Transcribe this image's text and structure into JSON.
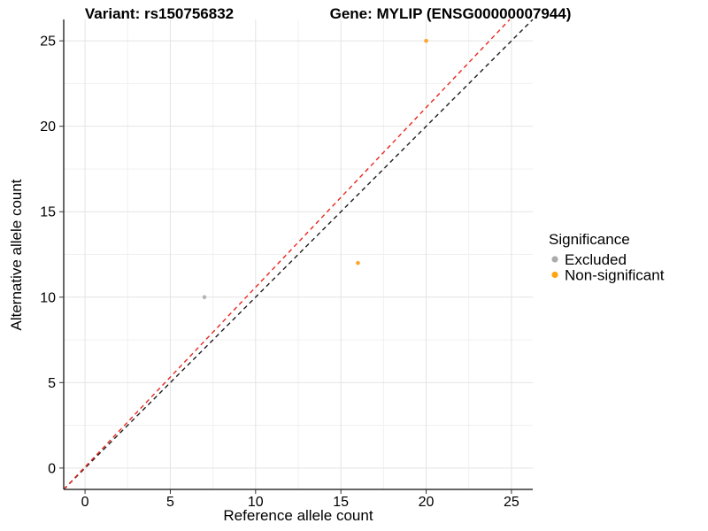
{
  "figure": {
    "title_left": "Variant: rs150756832",
    "title_right": "Gene: MYLIP (ENSG00000007944)"
  },
  "chart_data": {
    "type": "scatter",
    "title_left": "Variant: rs150756832",
    "title_right": "Gene: MYLIP (ENSG00000007944)",
    "xlabel": "Reference allele count",
    "ylabel": "Alternative allele count",
    "xlim": [
      -1.25,
      26.25
    ],
    "ylim": [
      -1.25,
      26.25
    ],
    "x_ticks": [
      0,
      5,
      10,
      15,
      20,
      25
    ],
    "y_ticks": [
      0,
      5,
      10,
      15,
      20,
      25
    ],
    "minor_grid_step": 2.5,
    "grid": "on",
    "legend_position": "right",
    "point_radius": 2.3,
    "series": [
      {
        "name": "Excluded",
        "color": "#B4B4B4",
        "marker": "circle",
        "points": [
          {
            "x": 7,
            "y": 10
          }
        ]
      },
      {
        "name": "Non-significant",
        "color": "#FCA42C",
        "marker": "circle",
        "points": [
          {
            "x": 16,
            "y": 12
          },
          {
            "x": 20,
            "y": 25
          }
        ]
      }
    ],
    "lines": [
      {
        "name": "identity-line",
        "style": "dashed",
        "color": "#1C1C1C",
        "from": {
          "x": -1.25,
          "y": -1.25
        },
        "to": {
          "x": 26.25,
          "y": 26.25
        }
      },
      {
        "name": "fit-line",
        "style": "dashed",
        "color": "#E8271D",
        "from": {
          "x": -1.25,
          "y": -1.25
        },
        "to": {
          "x": 24.9,
          "y": 26.25
        }
      }
    ],
    "legend": {
      "title": "Significance",
      "entries": [
        {
          "label": "Excluded",
          "color": "#ABABAB"
        },
        {
          "label": "Non-significant",
          "color": "#FFA40F"
        }
      ]
    }
  }
}
